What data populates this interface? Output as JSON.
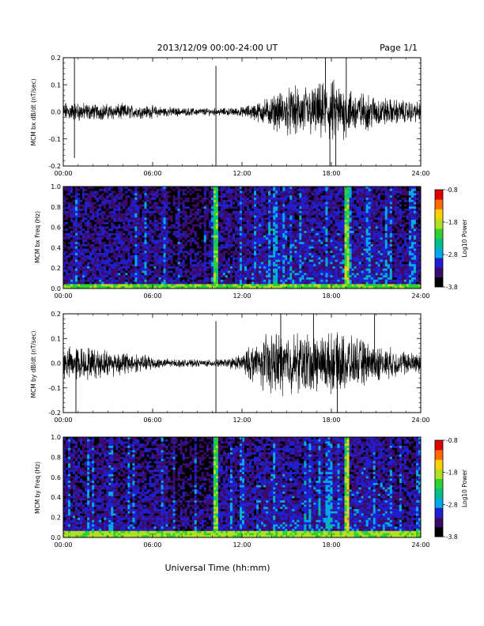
{
  "header": {
    "date_range": "2013/12/09  00:00-24:00 UT",
    "page": "Page 1/1"
  },
  "footer": {
    "xlabel": "Universal Time (hh:mm)"
  },
  "colorbar": {
    "label": "Log10 Power",
    "ticks": [
      "-0.8",
      "-1.8",
      "-2.8",
      "-3.8"
    ],
    "colors": [
      "#000000",
      "#3a0b6b",
      "#1f1fd0",
      "#00a8e8",
      "#00c08a",
      "#30d030",
      "#b0e020",
      "#ffd000",
      "#ff6a00",
      "#e00000"
    ]
  },
  "chart_data": [
    {
      "type": "line",
      "ylabel": "MCM bx dB/dt (nT/sec)",
      "xlim": [
        0,
        24
      ],
      "ylim": [
        -0.2,
        0.2
      ],
      "x_ticks": [
        "00:00",
        "06:00",
        "12:00",
        "18:00",
        "24:00"
      ],
      "y_ticks": [
        "0.2",
        "0.1",
        "0.0",
        "-0.1",
        "-0.2"
      ],
      "envelope": {
        "x_hours": [
          0,
          1,
          2,
          3,
          4,
          5,
          6,
          7,
          8,
          9,
          10,
          11,
          12,
          13,
          14,
          15,
          16,
          17,
          18,
          19,
          20,
          21,
          22,
          23,
          24
        ],
        "amplitude": [
          0.03,
          0.03,
          0.025,
          0.025,
          0.025,
          0.02,
          0.02,
          0.015,
          0.012,
          0.012,
          0.012,
          0.012,
          0.015,
          0.03,
          0.05,
          0.07,
          0.08,
          0.08,
          0.1,
          0.08,
          0.06,
          0.05,
          0.04,
          0.035,
          0.03
        ]
      },
      "spikes": [
        {
          "x": 0.75,
          "y": -0.17
        },
        {
          "x": 0.75,
          "y": 0.2
        },
        {
          "x": 10.25,
          "y": 0.17
        },
        {
          "x": 10.25,
          "y": -0.2
        },
        {
          "x": 17.6,
          "y": 0.2
        },
        {
          "x": 17.9,
          "y": -0.2
        },
        {
          "x": 18.3,
          "y": -0.2
        },
        {
          "x": 19.0,
          "y": 0.2
        }
      ]
    },
    {
      "type": "heatmap",
      "ylabel": "MCM bx Freq (Hz)",
      "xlim": [
        0,
        24
      ],
      "ylim": [
        0.0,
        1.0
      ],
      "x_ticks": [
        "00:00",
        "06:00",
        "12:00",
        "18:00",
        "24:00"
      ],
      "y_ticks": [
        "1.0",
        "0.8",
        "0.6",
        "0.4",
        "0.2",
        "0.0"
      ],
      "zlim": [
        -3.8,
        -0.8
      ],
      "bright_streaks_hours": [
        10.25,
        19.0
      ],
      "low_freq_band": {
        "below_hz": 0.05,
        "level": -2.2
      }
    },
    {
      "type": "line",
      "ylabel": "MCM by dB/dt (nT/sec)",
      "xlim": [
        0,
        24
      ],
      "ylim": [
        -0.2,
        0.2
      ],
      "x_ticks": [
        "00:00",
        "06:00",
        "12:00",
        "18:00",
        "24:00"
      ],
      "y_ticks": [
        "0.2",
        "0.1",
        "0.0",
        "-0.1",
        "-0.2"
      ],
      "envelope": {
        "x_hours": [
          0,
          1,
          2,
          3,
          4,
          5,
          6,
          7,
          8,
          9,
          10,
          11,
          12,
          13,
          14,
          15,
          16,
          17,
          18,
          19,
          20,
          21,
          22,
          23,
          24
        ],
        "amplitude": [
          0.05,
          0.06,
          0.05,
          0.045,
          0.04,
          0.03,
          0.025,
          0.015,
          0.012,
          0.012,
          0.012,
          0.015,
          0.03,
          0.08,
          0.1,
          0.1,
          0.1,
          0.1,
          0.1,
          0.09,
          0.08,
          0.06,
          0.05,
          0.04,
          0.035
        ]
      },
      "spikes": [
        {
          "x": 0.85,
          "y": -0.2
        },
        {
          "x": 10.25,
          "y": 0.17
        },
        {
          "x": 10.25,
          "y": -0.2
        },
        {
          "x": 14.6,
          "y": 0.2
        },
        {
          "x": 16.8,
          "y": 0.2
        },
        {
          "x": 18.4,
          "y": -0.2
        },
        {
          "x": 20.9,
          "y": 0.2
        }
      ]
    },
    {
      "type": "heatmap",
      "ylabel": "MCM by Freq (Hz)",
      "xlim": [
        0,
        24
      ],
      "ylim": [
        0.0,
        1.0
      ],
      "x_ticks": [
        "00:00",
        "06:00",
        "12:00",
        "18:00",
        "24:00"
      ],
      "y_ticks": [
        "1.0",
        "0.8",
        "0.6",
        "0.4",
        "0.2",
        "0.0"
      ],
      "zlim": [
        -3.8,
        -0.8
      ],
      "bright_streaks_hours": [
        10.25,
        19.0
      ],
      "low_freq_band": {
        "below_hz": 0.06,
        "level": -2.1
      }
    }
  ]
}
